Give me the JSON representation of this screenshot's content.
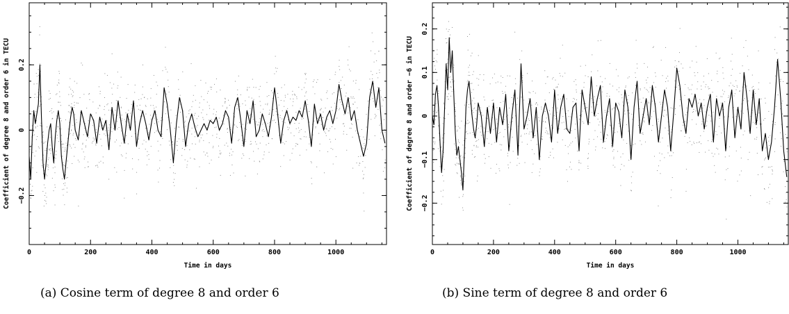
{
  "chart_data": [
    {
      "type": "line",
      "caption": "(a) Cosine term of degree 8 and order 6",
      "xlabel": "Time in days",
      "ylabel": "Coefficient of degree  8 and order  6 in TECU",
      "xlim": [
        0,
        1165
      ],
      "ylim": [
        -0.35,
        0.39
      ],
      "xticks": [
        0,
        200,
        400,
        600,
        800,
        1000
      ],
      "yticks": [
        -0.2,
        0,
        0.2
      ],
      "ytick_labels": [
        "−0.2",
        "0",
        "0.2"
      ],
      "xtick_labels": [
        "0",
        "200",
        "400",
        "600",
        "800",
        "1000"
      ],
      "scatter_spread": 0.07,
      "series": [
        {
          "style": "line",
          "x": [
            0,
            5,
            10,
            15,
            20,
            25,
            30,
            35,
            40,
            45,
            50,
            55,
            60,
            65,
            70,
            75,
            80,
            85,
            90,
            95,
            100,
            105,
            110,
            115,
            120,
            125,
            130,
            135,
            140,
            145,
            150,
            160,
            170,
            180,
            190,
            200,
            210,
            220,
            230,
            240,
            250,
            260,
            270,
            280,
            290,
            300,
            310,
            320,
            330,
            340,
            350,
            360,
            370,
            380,
            390,
            400,
            410,
            420,
            430,
            440,
            450,
            460,
            470,
            480,
            490,
            500,
            510,
            520,
            530,
            540,
            550,
            560,
            570,
            580,
            590,
            600,
            610,
            620,
            630,
            640,
            650,
            660,
            670,
            680,
            690,
            700,
            710,
            720,
            730,
            740,
            750,
            760,
            770,
            780,
            790,
            800,
            810,
            820,
            830,
            840,
            850,
            860,
            870,
            880,
            890,
            900,
            910,
            920,
            930,
            940,
            950,
            960,
            970,
            980,
            990,
            1000,
            1010,
            1020,
            1030,
            1040,
            1050,
            1060,
            1070,
            1080,
            1090,
            1100,
            1110,
            1120,
            1130,
            1140,
            1150,
            1160
          ],
          "y": [
            -0.08,
            -0.15,
            -0.02,
            0.06,
            0.02,
            0.05,
            0.08,
            0.2,
            0.04,
            -0.1,
            -0.15,
            -0.1,
            -0.04,
            0.0,
            0.02,
            -0.05,
            -0.1,
            -0.02,
            0.03,
            0.06,
            0.02,
            -0.08,
            -0.12,
            -0.15,
            -0.1,
            -0.05,
            0.0,
            0.04,
            0.07,
            0.05,
            0.0,
            -0.03,
            0.06,
            0.02,
            -0.02,
            0.05,
            0.03,
            -0.04,
            0.04,
            0.0,
            0.03,
            -0.06,
            0.07,
            0.0,
            0.09,
            0.02,
            -0.04,
            0.05,
            0.0,
            0.09,
            -0.05,
            0.02,
            0.06,
            0.02,
            -0.03,
            0.03,
            0.06,
            0.0,
            -0.02,
            0.13,
            0.08,
            0.0,
            -0.1,
            0.02,
            0.1,
            0.06,
            -0.05,
            0.02,
            0.05,
            0.01,
            -0.02,
            0.0,
            0.02,
            0.0,
            0.03,
            0.02,
            0.04,
            0.0,
            0.02,
            0.06,
            0.04,
            -0.04,
            0.07,
            0.1,
            0.03,
            -0.05,
            0.06,
            0.02,
            0.09,
            -0.02,
            0.0,
            0.05,
            0.02,
            -0.02,
            0.04,
            0.13,
            0.05,
            -0.04,
            0.03,
            0.06,
            0.02,
            0.04,
            0.03,
            0.06,
            0.04,
            0.09,
            0.03,
            -0.05,
            0.08,
            0.02,
            0.05,
            0.0,
            0.04,
            0.06,
            0.02,
            0.06,
            0.14,
            0.09,
            0.05,
            0.1,
            0.03,
            0.06,
            0.0,
            -0.04,
            -0.08,
            -0.04,
            0.1,
            0.15,
            0.07,
            0.13,
            0.0,
            -0.04
          ]
        }
      ]
    },
    {
      "type": "line",
      "caption": "(b) Sine term of degree 8 and order 6",
      "xlabel": "Time in days",
      "ylabel": "Coefficient of degree  8 and order −6 in TECU",
      "xlim": [
        0,
        1165
      ],
      "ylim": [
        -0.295,
        0.26
      ],
      "xticks": [
        0,
        200,
        400,
        600,
        800,
        1000
      ],
      "yticks": [
        -0.2,
        -0.1,
        0,
        0.1,
        0.2
      ],
      "ytick_labels": [
        "−0.2",
        "−0.1",
        "0",
        "0.1",
        "0.2"
      ],
      "xtick_labels": [
        "0",
        "200",
        "400",
        "600",
        "800",
        "1000"
      ],
      "scatter_spread": 0.06,
      "series": [
        {
          "style": "line",
          "x": [
            0,
            5,
            10,
            15,
            20,
            25,
            30,
            35,
            40,
            45,
            50,
            55,
            60,
            65,
            70,
            75,
            80,
            85,
            90,
            95,
            100,
            105,
            110,
            115,
            120,
            125,
            130,
            135,
            140,
            145,
            150,
            160,
            170,
            180,
            190,
            200,
            210,
            220,
            230,
            240,
            250,
            260,
            270,
            280,
            290,
            300,
            310,
            320,
            330,
            340,
            350,
            360,
            370,
            380,
            390,
            400,
            410,
            420,
            430,
            440,
            450,
            460,
            470,
            480,
            490,
            500,
            510,
            520,
            530,
            540,
            550,
            560,
            570,
            580,
            590,
            600,
            610,
            620,
            630,
            640,
            650,
            660,
            670,
            680,
            690,
            700,
            710,
            720,
            730,
            740,
            750,
            760,
            770,
            780,
            790,
            800,
            810,
            820,
            830,
            840,
            850,
            860,
            870,
            880,
            890,
            900,
            910,
            920,
            930,
            940,
            950,
            960,
            970,
            980,
            990,
            1000,
            1010,
            1020,
            1030,
            1040,
            1050,
            1060,
            1070,
            1080,
            1090,
            1100,
            1110,
            1120,
            1130,
            1140,
            1150,
            1160
          ],
          "y": [
            0.0,
            -0.02,
            0.05,
            0.07,
            0.02,
            -0.06,
            -0.13,
            -0.08,
            0.02,
            0.12,
            0.06,
            0.18,
            0.1,
            0.15,
            0.05,
            -0.04,
            -0.09,
            -0.07,
            -0.1,
            -0.13,
            -0.17,
            -0.08,
            0.02,
            0.06,
            0.08,
            0.04,
            0.0,
            -0.03,
            -0.05,
            -0.02,
            0.03,
            0.0,
            -0.07,
            0.02,
            -0.04,
            0.03,
            -0.06,
            0.02,
            -0.02,
            0.05,
            -0.08,
            0.0,
            0.06,
            -0.09,
            0.12,
            -0.03,
            0.0,
            0.04,
            -0.05,
            0.02,
            -0.1,
            0.0,
            0.03,
            0.0,
            -0.06,
            0.06,
            -0.04,
            0.02,
            0.05,
            -0.03,
            -0.04,
            0.02,
            0.03,
            -0.08,
            0.06,
            0.02,
            -0.02,
            0.09,
            0.0,
            0.04,
            0.07,
            -0.06,
            0.0,
            0.04,
            -0.07,
            0.03,
            0.01,
            -0.05,
            0.06,
            0.02,
            -0.1,
            0.02,
            0.08,
            -0.04,
            0.0,
            0.04,
            -0.02,
            0.07,
            0.02,
            -0.06,
            0.0,
            0.06,
            0.02,
            -0.08,
            0.01,
            0.11,
            0.07,
            0.0,
            -0.04,
            0.04,
            0.02,
            0.05,
            0.0,
            0.03,
            -0.03,
            0.02,
            0.05,
            -0.06,
            0.04,
            0.0,
            0.03,
            -0.08,
            0.02,
            0.06,
            -0.05,
            0.02,
            -0.03,
            0.1,
            0.04,
            -0.04,
            0.06,
            -0.02,
            0.04,
            -0.08,
            -0.04,
            -0.1,
            -0.06,
            0.02,
            0.13,
            0.04,
            -0.08,
            -0.14
          ]
        }
      ]
    }
  ]
}
